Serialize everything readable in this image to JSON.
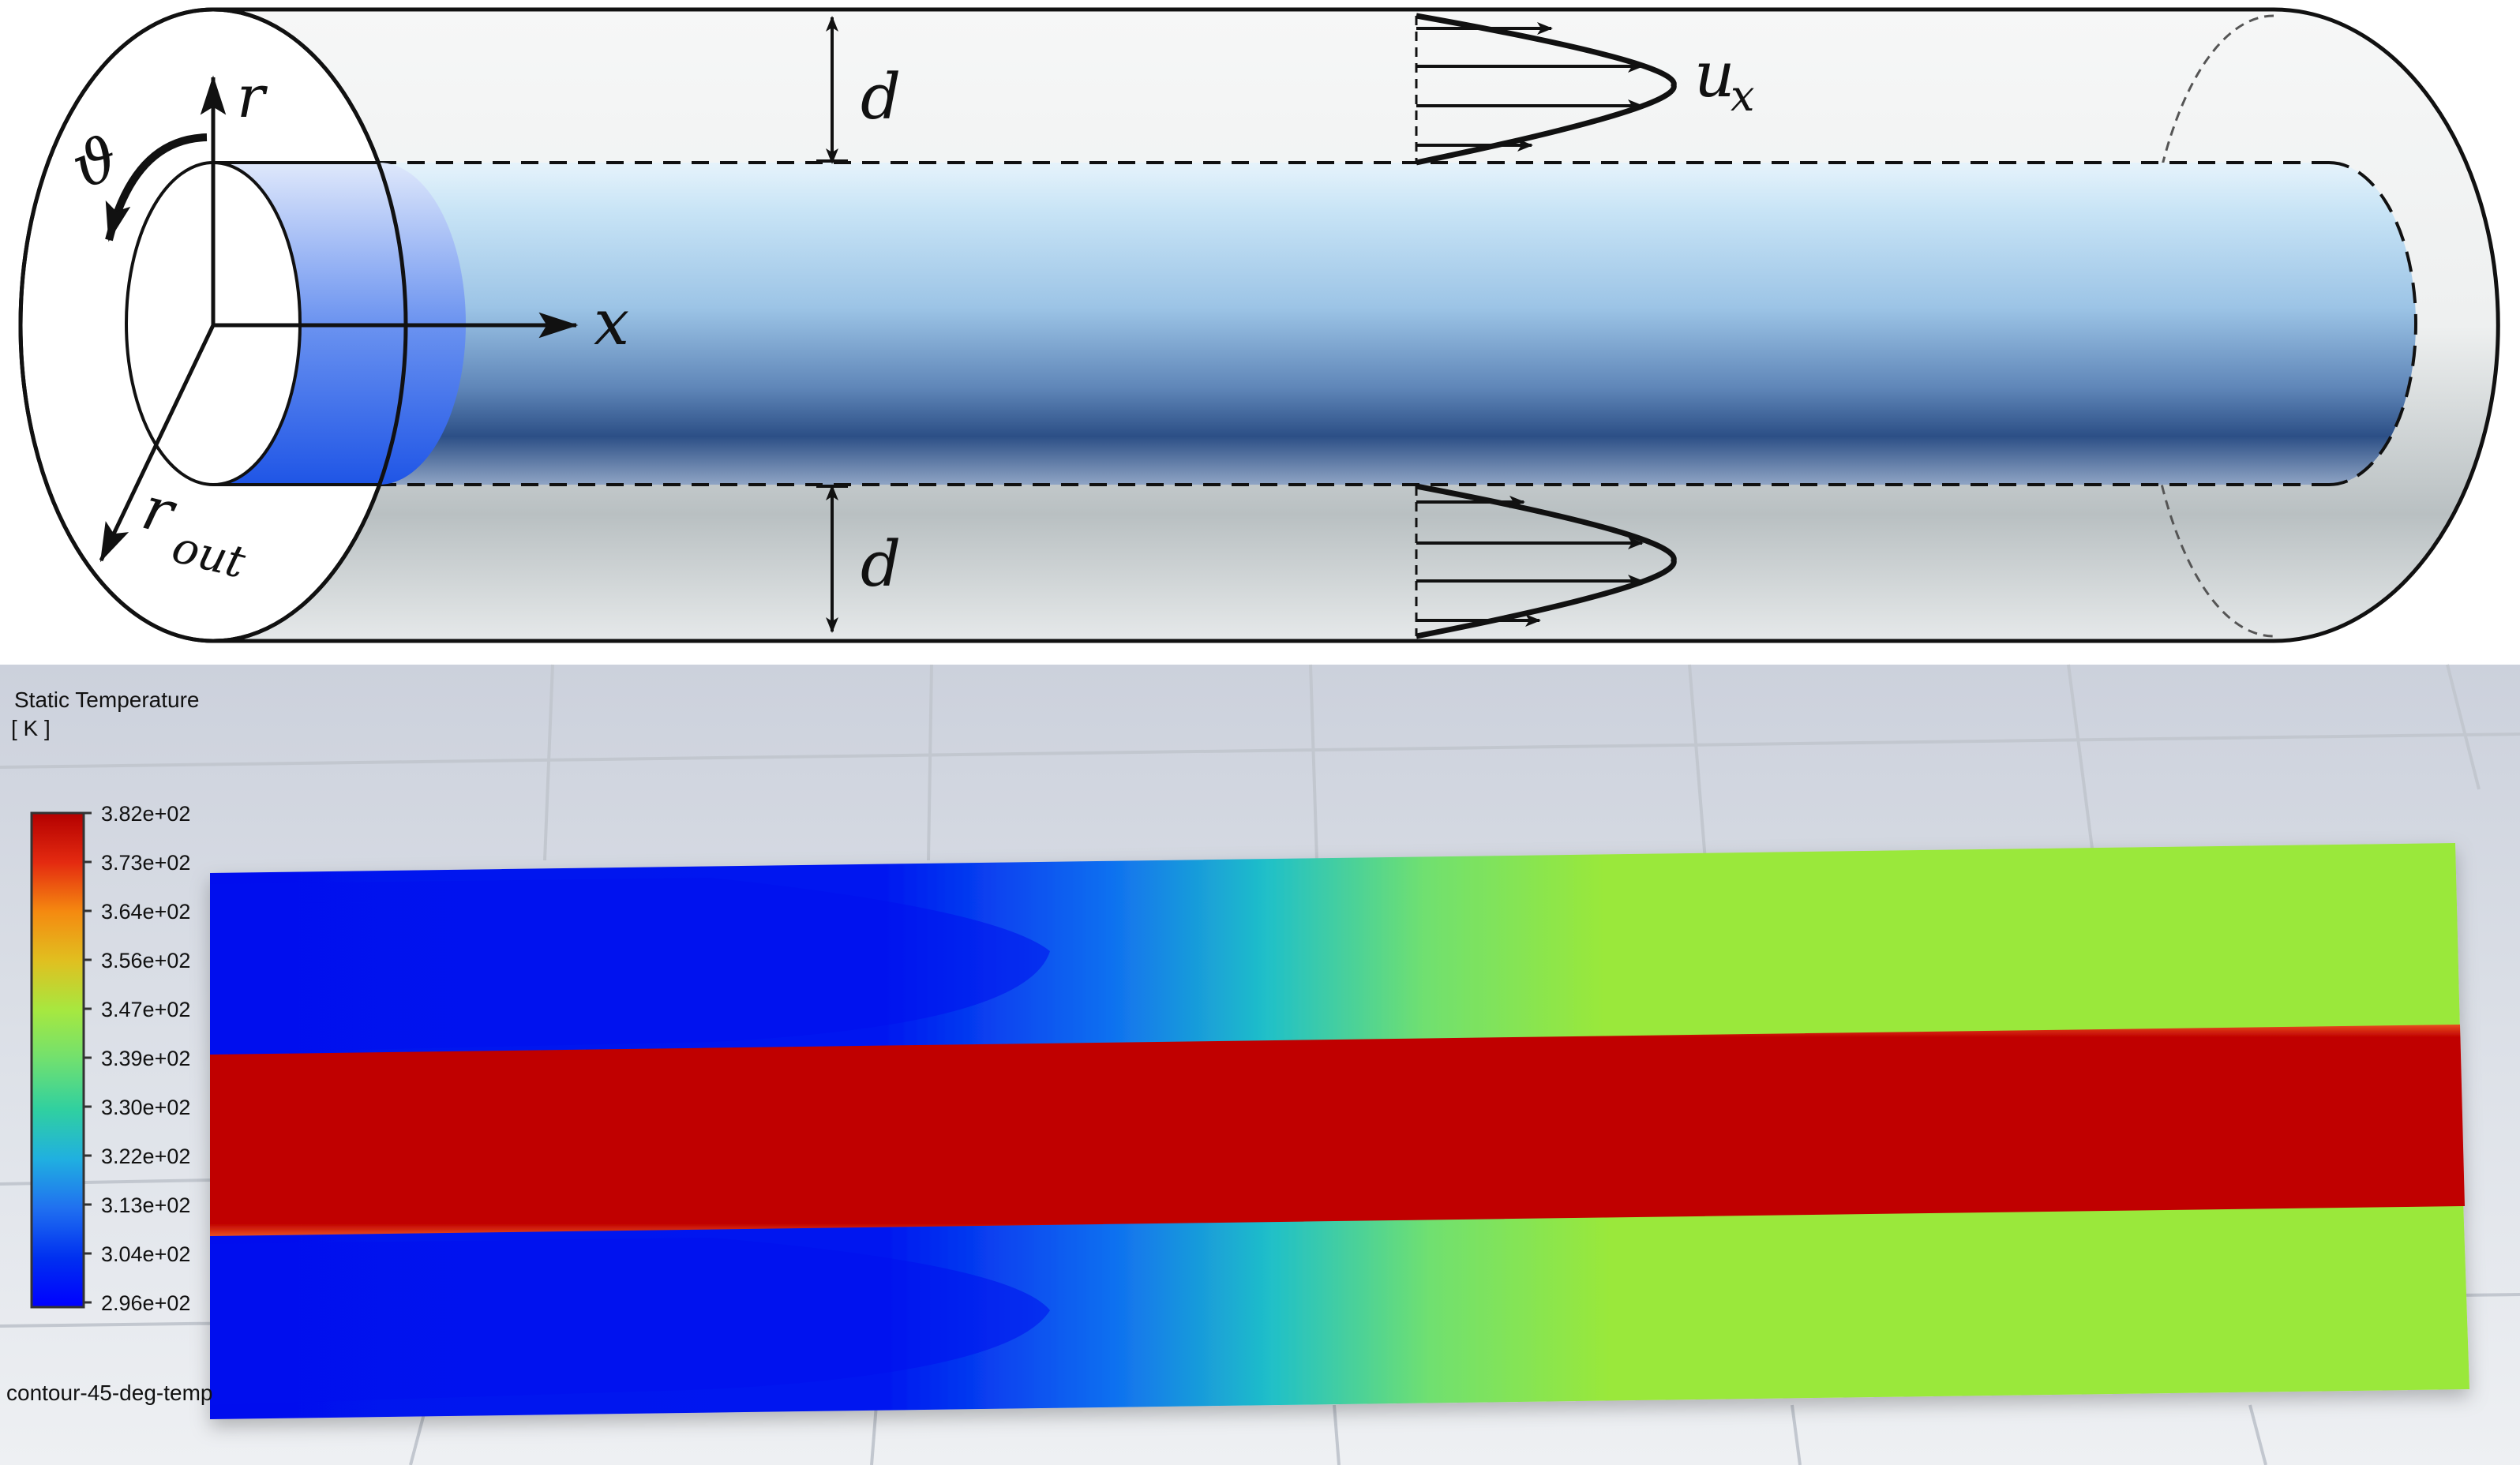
{
  "schematic": {
    "labels": {
      "r": "r",
      "theta": "ϑ",
      "x": "x",
      "r_out_main": "r",
      "r_out_sub": "out",
      "d_top": "d",
      "d_bottom": "d",
      "u_main": "u",
      "u_sub": "x"
    },
    "colors": {
      "inner_pipe_light": "#d8ecf8",
      "inner_pipe_mid": "#8fb8dc",
      "inner_pipe_dark": "#2c4f86",
      "inlet_blue": "#2f63e8",
      "outer_shell": "#eef0f1",
      "outer_shell_dark": "#9aa3a6"
    }
  },
  "contour": {
    "legend": {
      "title_line1": "Static Temperature",
      "title_line2": "[ K ]",
      "ticks": [
        "3.82e+02",
        "3.73e+02",
        "3.64e+02",
        "3.56e+02",
        "3.47e+02",
        "3.39e+02",
        "3.30e+02",
        "3.22e+02",
        "3.13e+02",
        "3.04e+02",
        "2.96e+02"
      ],
      "colors": [
        "#b30000",
        "#e83010",
        "#f58a10",
        "#e0c020",
        "#a6e840",
        "#70e070",
        "#30d0a0",
        "#20b0e0",
        "#2070f0",
        "#0030f0",
        "#0000ff"
      ]
    },
    "caption": "contour-45-deg-temp",
    "field_colors": {
      "hot_core": "#c00000",
      "cold_inlet": "#0010ee",
      "mixed": "#9ae83a"
    },
    "background": "#dfe3ea"
  }
}
